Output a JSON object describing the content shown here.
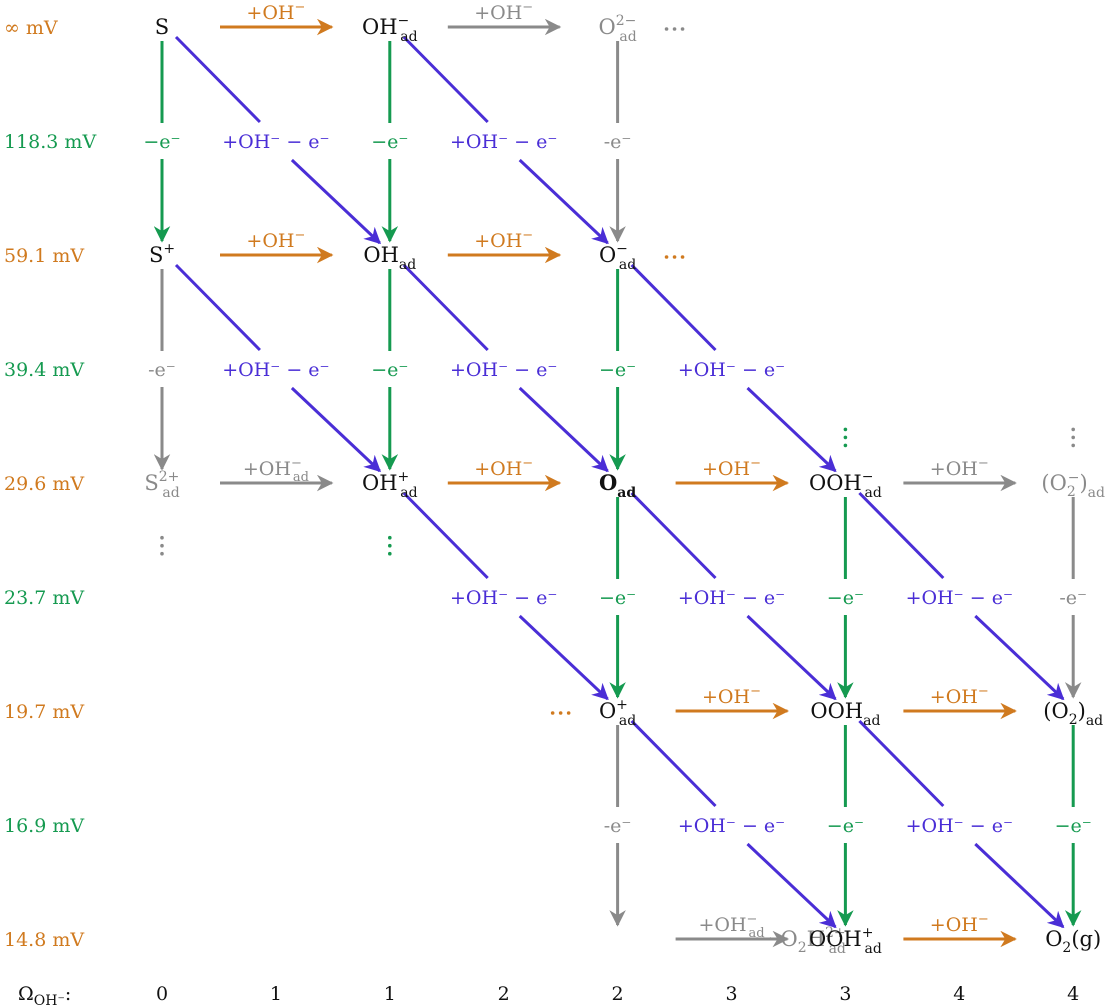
{
  "colors": {
    "orange": "#D07A1F",
    "green": "#159A50",
    "blue": "#4A2ED6",
    "gray": "#8A8A8A",
    "black": "#111111",
    "orange_label": "#E0913A"
  },
  "row_labels": [
    {
      "text": "∞ mV",
      "color": "orange"
    },
    {
      "text": "118.3 mV",
      "color": "green"
    },
    {
      "text": "59.1 mV",
      "color": "orange"
    },
    {
      "text": "39.4 mV",
      "color": "green"
    },
    {
      "text": "29.6 mV",
      "color": "orange"
    },
    {
      "text": "23.7 mV",
      "color": "green"
    },
    {
      "text": "19.7 mV",
      "color": "orange"
    },
    {
      "text": "16.9 mV",
      "color": "green"
    },
    {
      "text": "14.8 mV",
      "color": "orange"
    }
  ],
  "omega_label": {
    "main": "Ω",
    "sub": "OH⁻",
    "suffix": ":"
  },
  "omega_values": [
    "0",
    "1",
    "1",
    "2",
    "2",
    "3",
    "3",
    "4",
    "4"
  ],
  "nodes": [
    {
      "col": 0,
      "row": 0,
      "base": "S",
      "color": "black"
    },
    {
      "col": 2,
      "row": 0,
      "base": "OH",
      "sup": "−",
      "sub": "ad",
      "color": "black"
    },
    {
      "col": 4,
      "row": 0,
      "base": "O",
      "sup": "2−",
      "sub": "ad",
      "color": "gray"
    },
    {
      "col": 0,
      "row": 2,
      "base": "S",
      "sup": "+",
      "color": "black"
    },
    {
      "col": 2,
      "row": 2,
      "base": "OH",
      "sub": "ad",
      "color": "black"
    },
    {
      "col": 4,
      "row": 2,
      "base": "O",
      "sup": "−",
      "sub": "ad",
      "color": "black"
    },
    {
      "col": 0,
      "row": 4,
      "base": "S",
      "sup": "2+",
      "sub": "ad",
      "color": "gray"
    },
    {
      "col": 2,
      "row": 4,
      "base": "OH",
      "sup": "+",
      "sub": "ad",
      "color": "black"
    },
    {
      "col": 4,
      "row": 4,
      "base": "O",
      "sub": "ad",
      "color": "black",
      "bold": true
    },
    {
      "col": 6,
      "row": 4,
      "base": "OOH",
      "sup": "−",
      "sub": "ad",
      "color": "black"
    },
    {
      "col": 8,
      "row": 4,
      "base": "(O",
      "sub1": "2",
      "sup1": "−",
      "after": ")",
      "sub": "ad",
      "color": "gray"
    },
    {
      "col": 4,
      "row": 6,
      "base": "O",
      "sup": "+",
      "sub": "ad",
      "color": "black"
    },
    {
      "col": 6,
      "row": 6,
      "base": "OOH",
      "sub": "ad",
      "color": "black"
    },
    {
      "col": 8,
      "row": 6,
      "base": "(O",
      "sub1": "2",
      "after": ")",
      "sub": "ad",
      "color": "black"
    },
    {
      "col": 5.6,
      "row": 8,
      "base": "··· O",
      "sub1": "2",
      "after": "H",
      "sup": "2+",
      "sub": "ad",
      "color": "gray"
    },
    {
      "col": 6,
      "row": 8,
      "base": "OOH",
      "sup": "+",
      "sub": "ad",
      "color": "black"
    },
    {
      "col": 8,
      "row": 8,
      "base": "O",
      "sub1": "2",
      "after": "(g)",
      "color": "black"
    }
  ],
  "dots": [
    {
      "col": 4.5,
      "row": 0,
      "kind": "h",
      "color": "gray"
    },
    {
      "col": 4.5,
      "row": 2,
      "kind": "h",
      "color": "orange"
    },
    {
      "col": 3.5,
      "row": 6,
      "kind": "h",
      "color": "orange"
    },
    {
      "col": 6,
      "row": 3.6,
      "kind": "v",
      "color": "green"
    },
    {
      "col": 8,
      "row": 3.6,
      "kind": "v",
      "color": "gray"
    },
    {
      "col": 0,
      "row": 4.55,
      "kind": "v",
      "color": "gray"
    },
    {
      "col": 2,
      "row": 4.55,
      "kind": "v",
      "color": "green"
    }
  ],
  "h_edges": [
    {
      "col": 0,
      "row": 0,
      "label": "+OH",
      "label_sup": "−",
      "color": "orange"
    },
    {
      "col": 2,
      "row": 0,
      "label": "+OH",
      "label_sup": "−",
      "color": "gray"
    },
    {
      "col": 0,
      "row": 2,
      "label": "+OH",
      "label_sup": "−",
      "color": "orange"
    },
    {
      "col": 2,
      "row": 2,
      "label": "+OH",
      "label_sup": "−",
      "color": "orange"
    },
    {
      "col": 0,
      "row": 4,
      "label": "+OH",
      "label_sup": "−",
      "label_sub": "ad",
      "color": "gray"
    },
    {
      "col": 2,
      "row": 4,
      "label": "+OH",
      "label_sup": "−",
      "color": "orange"
    },
    {
      "col": 4,
      "row": 4,
      "label": "+OH",
      "label_sup": "−",
      "color": "orange"
    },
    {
      "col": 6,
      "row": 4,
      "label": "+OH",
      "label_sup": "−",
      "color": "gray"
    },
    {
      "col": 4,
      "row": 6,
      "label": "+OH",
      "label_sup": "−",
      "color": "orange"
    },
    {
      "col": 6,
      "row": 6,
      "label": "+OH",
      "label_sup": "−",
      "color": "orange"
    },
    {
      "col": 4,
      "row": 8,
      "label": "+OH",
      "label_sup": "−",
      "label_sub": "ad",
      "color": "gray"
    },
    {
      "col": 6,
      "row": 8,
      "label": "+OH",
      "label_sup": "−",
      "color": "orange"
    }
  ],
  "v_edges": [
    {
      "col": 0,
      "row": 0,
      "label": "−e⁻",
      "color": "green"
    },
    {
      "col": 2,
      "row": 0,
      "label": "−e⁻",
      "color": "green"
    },
    {
      "col": 4,
      "row": 0,
      "label": "-e⁻",
      "color": "gray"
    },
    {
      "col": 0,
      "row": 2,
      "label": "-e⁻",
      "color": "gray"
    },
    {
      "col": 2,
      "row": 2,
      "label": "−e⁻",
      "color": "green"
    },
    {
      "col": 4,
      "row": 2,
      "label": "−e⁻",
      "color": "green"
    },
    {
      "col": 4,
      "row": 4,
      "label": "−e⁻",
      "color": "green"
    },
    {
      "col": 6,
      "row": 4,
      "label": "−e⁻",
      "color": "green"
    },
    {
      "col": 8,
      "row": 4,
      "label": "-e⁻",
      "color": "gray"
    },
    {
      "col": 4,
      "row": 6,
      "label": "-e⁻",
      "color": "gray"
    },
    {
      "col": 6,
      "row": 6,
      "label": "−e⁻",
      "color": "green"
    },
    {
      "col": 8,
      "row": 6,
      "label": "−e⁻",
      "color": "green"
    }
  ],
  "d_edges": [
    {
      "col": 0,
      "row": 0,
      "label": "+OH⁻ − e⁻",
      "color": "blue"
    },
    {
      "col": 2,
      "row": 0,
      "label": "+OH⁻ − e⁻",
      "color": "blue"
    },
    {
      "col": 0,
      "row": 2,
      "label": "+OH⁻ − e⁻",
      "color": "blue"
    },
    {
      "col": 2,
      "row": 2,
      "label": "+OH⁻ − e⁻",
      "color": "blue"
    },
    {
      "col": 4,
      "row": 2,
      "label": "+OH⁻ − e⁻",
      "color": "blue"
    },
    {
      "col": 2,
      "row": 4,
      "label": "+OH⁻ − e⁻",
      "color": "blue"
    },
    {
      "col": 4,
      "row": 4,
      "label": "+OH⁻ − e⁻",
      "color": "blue"
    },
    {
      "col": 6,
      "row": 4,
      "label": "+OH⁻ − e⁻",
      "color": "blue"
    },
    {
      "col": 4,
      "row": 6,
      "label": "+OH⁻ − e⁻",
      "color": "blue"
    },
    {
      "col": 6,
      "row": 6,
      "label": "+OH⁻ − e⁻",
      "color": "blue"
    }
  ]
}
